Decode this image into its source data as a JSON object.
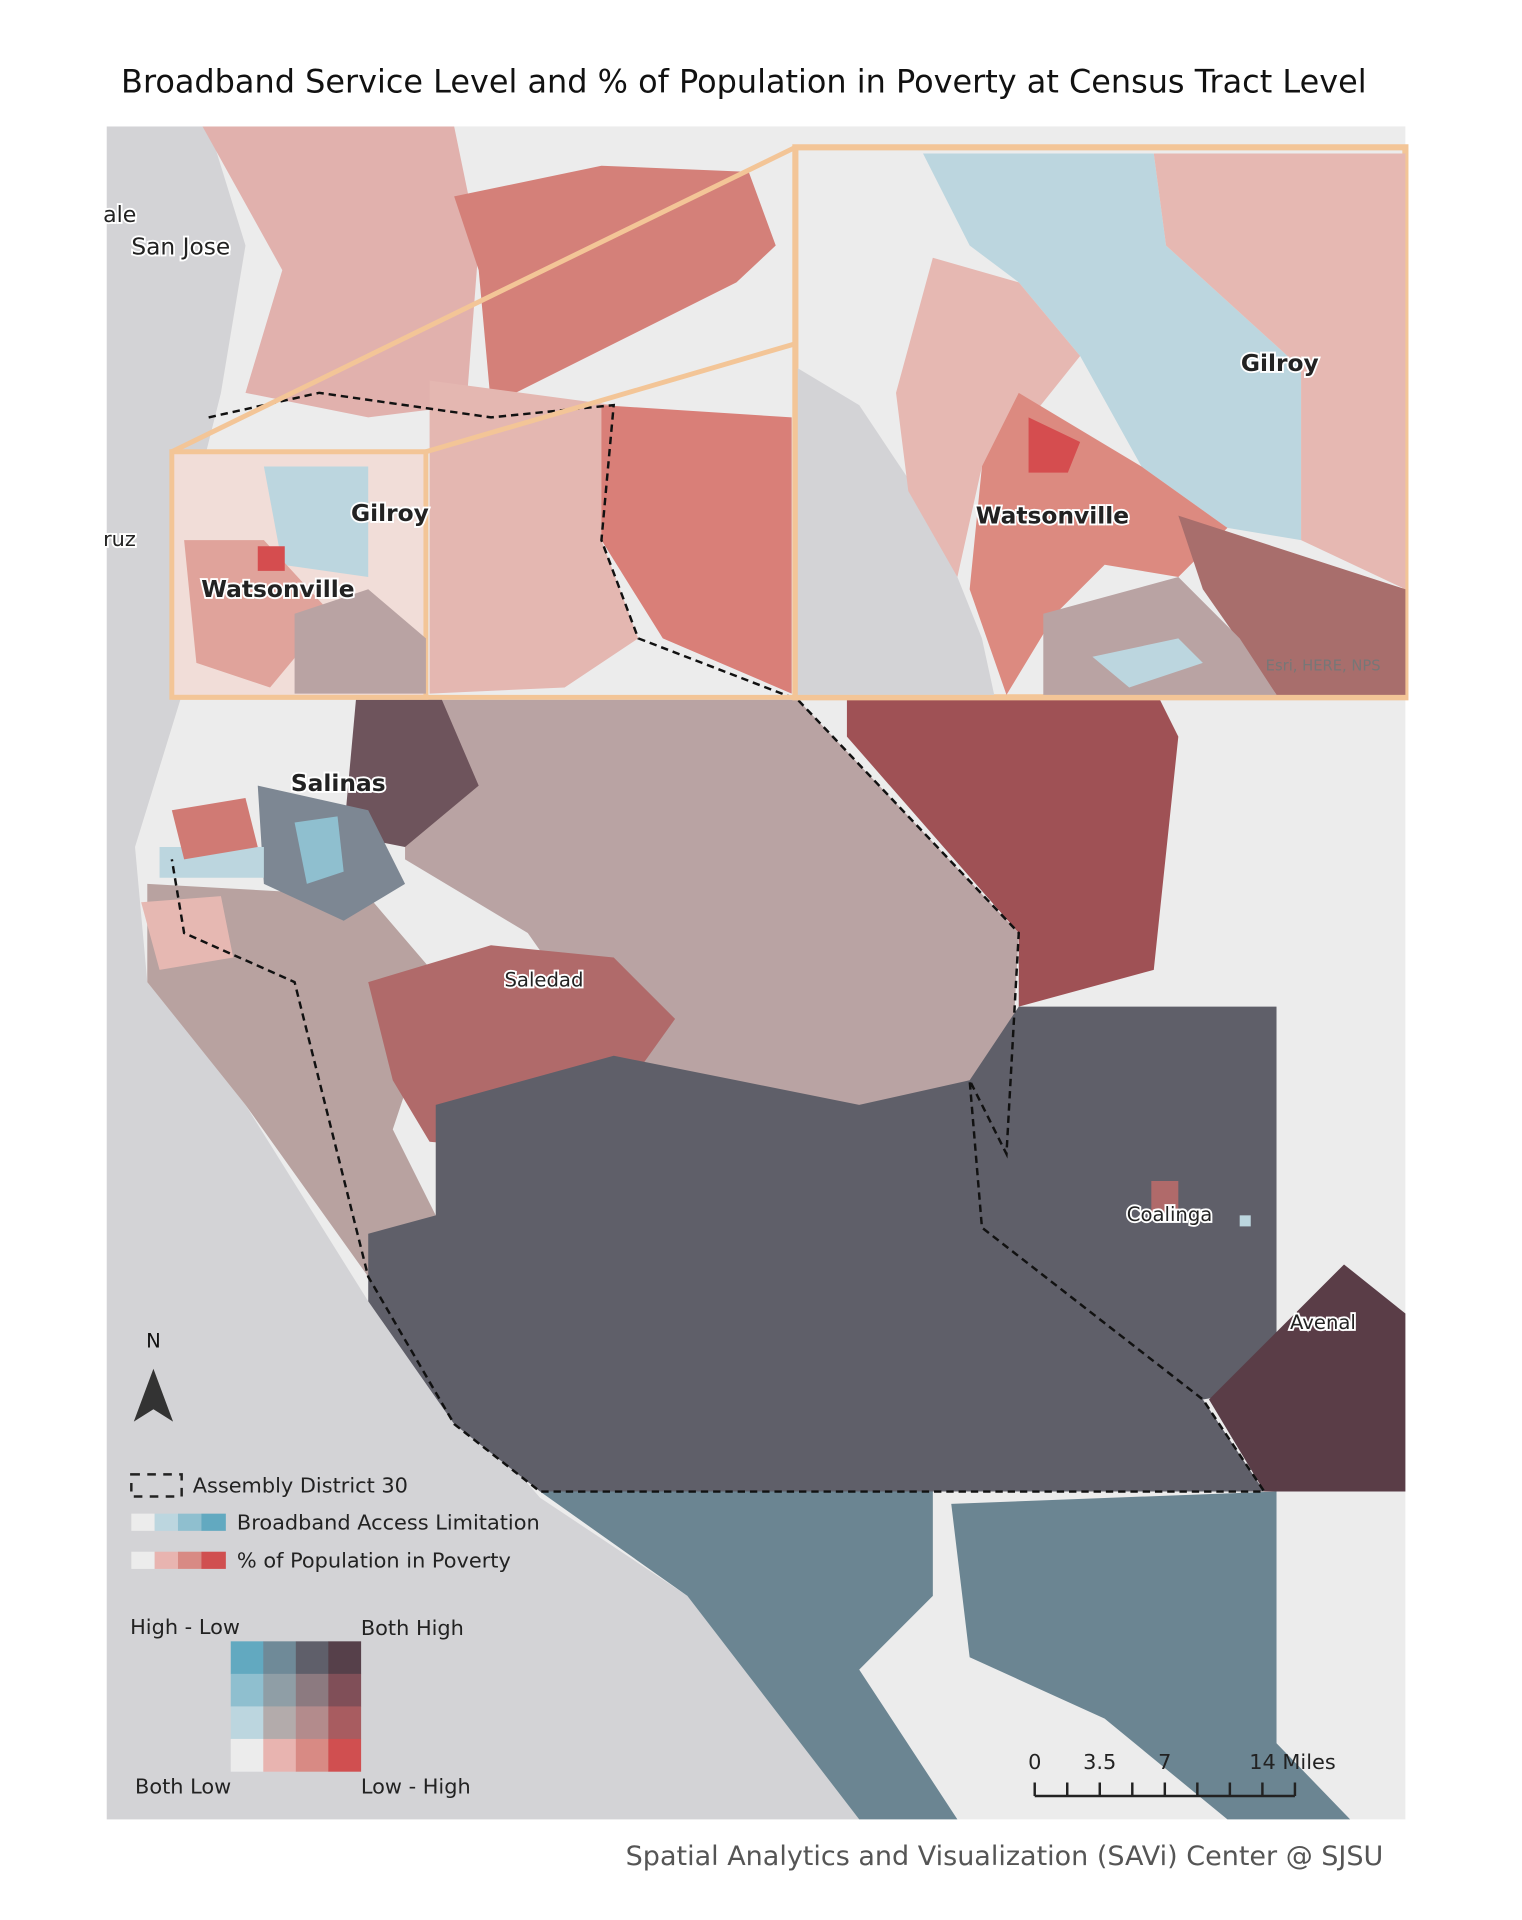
{
  "title": "Broadband Service Level and % of Population in Poverty at Census Tract Level",
  "place_labels": [
    "ale",
    "San Jose",
    "ruz",
    "Gilroy",
    "Watsonville",
    "Salinas",
    "Saledad",
    "Coalinga",
    "Avenal"
  ],
  "inset": {
    "labels": [
      "Gilroy",
      "Watsonville"
    ],
    "attribution": "Esri, HERE, NPS"
  },
  "north_arrow": "N",
  "legend": {
    "district": "Assembly District 30",
    "broadband": "Broadband Access Limitation",
    "poverty": "% of Population in Poverty"
  },
  "bivariate": {
    "top_left": "High - Low",
    "top_right": "Both High",
    "bottom_left": "Both Low",
    "bottom_right": "Low - High"
  },
  "scale_bar": {
    "labels": [
      "0",
      "3.5",
      "7",
      "14 Miles"
    ]
  },
  "credit": "Spatial Analytics and Visualization (SAVi) Center @ SJSU"
}
